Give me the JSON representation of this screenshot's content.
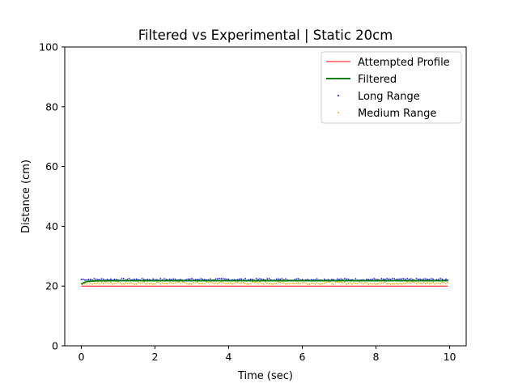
{
  "chart_data": {
    "type": "scatter",
    "title": "Filtered vs Experimental | Static 20cm",
    "xlabel": "Time (sec)",
    "ylabel": "Distance (cm)",
    "xlim": [
      -0.45,
      10.45
    ],
    "ylim": [
      0,
      100
    ],
    "xticks": [
      0,
      2,
      4,
      6,
      8,
      10
    ],
    "yticks": [
      0,
      20,
      40,
      60,
      80,
      100
    ],
    "grid": false,
    "legend_position": "top-right",
    "series": [
      {
        "name": "Attempted Profile",
        "kind": "line",
        "color": "#ff0000",
        "x": [
          0,
          9.95
        ],
        "y": [
          20,
          20
        ]
      },
      {
        "name": "Filtered",
        "kind": "line",
        "color": "#008000",
        "x": [
          0,
          0.05,
          0.1,
          0.15,
          0.2,
          0.3,
          0.5,
          1,
          2,
          3,
          4,
          5,
          6,
          7,
          8,
          9,
          9.95
        ],
        "y": [
          20.5,
          21.0,
          21.3,
          21.5,
          21.6,
          21.7,
          21.75,
          21.8,
          21.8,
          21.8,
          21.8,
          21.8,
          21.8,
          21.8,
          21.8,
          21.8,
          21.8
        ]
      },
      {
        "name": "Long Range",
        "kind": "scatter",
        "color": "#0000ff",
        "x_start": 0,
        "x_end": 9.95,
        "x_step": 0.05,
        "y_mean": 22.2,
        "y_jitter": 0.3
      },
      {
        "name": "Medium Range",
        "kind": "scatter",
        "color": "#ffa500",
        "x_start": 0,
        "x_end": 9.95,
        "x_step": 0.05,
        "y_mean": 21.0,
        "y_jitter": 0.4
      }
    ]
  }
}
